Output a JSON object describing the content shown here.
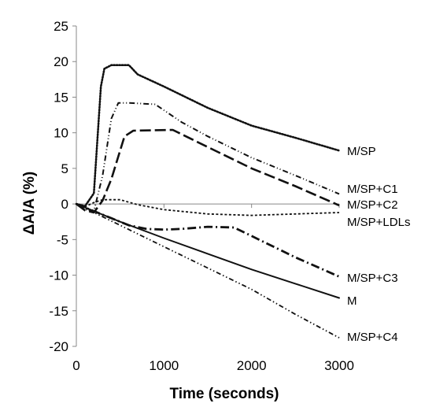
{
  "chart_data": {
    "type": "line",
    "title": "",
    "xlabel": "Time (seconds)",
    "ylabel": "ΔA/A (%)",
    "xlim": [
      0,
      3000
    ],
    "ylim": [
      -20,
      25
    ],
    "xticks": [
      0,
      1000,
      2000,
      3000
    ],
    "yticks": [
      -20,
      -15,
      -10,
      -5,
      0,
      5,
      10,
      15,
      20,
      25
    ],
    "grid": false,
    "legend": "none",
    "series": [
      {
        "name": "M/SP",
        "style": "dotted-dense",
        "x": [
          0,
          100,
          200,
          280,
          320,
          400,
          600,
          700,
          1000,
          1500,
          2000,
          2500,
          3000
        ],
        "y": [
          0,
          -0.3,
          1.5,
          16.5,
          19.0,
          19.5,
          19.5,
          18.2,
          16.5,
          13.5,
          11.0,
          9.3,
          7.5
        ]
      },
      {
        "name": "M/SP+C1",
        "style": "dash-dot-dot",
        "x": [
          0,
          100,
          200,
          300,
          400,
          480,
          600,
          900,
          1200,
          1500,
          2000,
          2500,
          3000
        ],
        "y": [
          0,
          -0.8,
          -1.0,
          4.0,
          12.0,
          14.2,
          14.2,
          14.0,
          11.5,
          9.5,
          6.5,
          4.0,
          1.4
        ]
      },
      {
        "name": "M/SP+C2",
        "style": "long-dash",
        "x": [
          0,
          100,
          200,
          300,
          400,
          550,
          650,
          1100,
          1500,
          2000,
          2500,
          3000
        ],
        "y": [
          0,
          -0.9,
          -1.2,
          0.5,
          3.5,
          9.5,
          10.3,
          10.4,
          8.0,
          5.0,
          2.5,
          -0.2
        ]
      },
      {
        "name": "M/SP+LDLs",
        "style": "short-dash",
        "x": [
          0,
          100,
          200,
          300,
          500,
          700,
          1000,
          1500,
          2000,
          2500,
          3000
        ],
        "y": [
          0,
          -0.4,
          0.2,
          0.6,
          0.6,
          -0.1,
          -0.8,
          -1.4,
          -1.6,
          -1.4,
          -1.2
        ]
      },
      {
        "name": "M/SP+C3",
        "style": "dash-dot",
        "x": [
          0,
          200,
          400,
          600,
          800,
          1000,
          1200,
          1500,
          1800,
          2000,
          2500,
          3000
        ],
        "y": [
          0,
          -1.0,
          -2.0,
          -3.0,
          -3.5,
          -3.6,
          -3.5,
          -3.2,
          -3.3,
          -4.5,
          -7.5,
          -10.2
        ]
      },
      {
        "name": "M",
        "style": "solid-dotted",
        "x": [
          0,
          500,
          1000,
          1500,
          2000,
          2500,
          3000
        ],
        "y": [
          0,
          -2.5,
          -4.8,
          -7.0,
          -9.2,
          -11.2,
          -13.2
        ]
      },
      {
        "name": "M/SP+C4",
        "style": "dash-dot-dot-dot",
        "x": [
          0,
          500,
          1000,
          1500,
          2000,
          2500,
          3000
        ],
        "y": [
          0,
          -3.0,
          -6.0,
          -9.0,
          -12.0,
          -15.5,
          -18.8
        ]
      }
    ]
  }
}
